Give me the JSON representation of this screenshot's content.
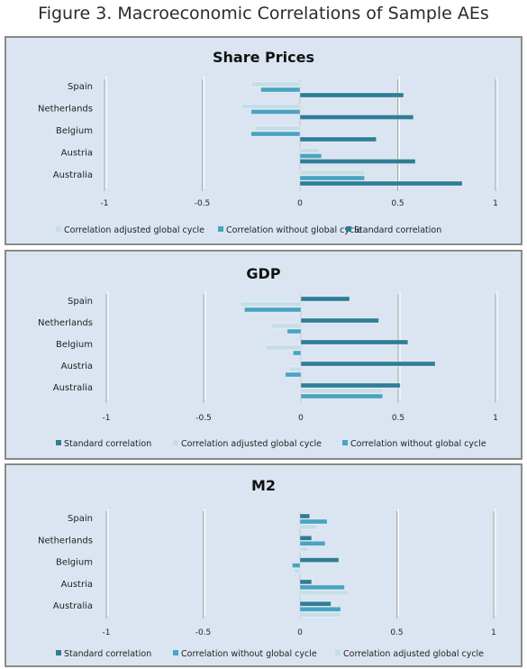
{
  "figure_title": "Figure 3. Macroeconomic Correlations of Sample AEs",
  "colors": {
    "standard": "#2f7d96",
    "without": "#4aa3c2",
    "adjusted": "#c5dde6",
    "panel_bg": "#dbe5f1"
  },
  "chart_data": [
    {
      "type": "bar",
      "orientation": "horizontal",
      "title": "Share Prices",
      "categories": [
        "Spain",
        "Netherlands",
        "Belgium",
        "Austria",
        "Australia"
      ],
      "xlim": [
        -1,
        1
      ],
      "xticks": [
        "-1",
        "-0.5",
        "0",
        "0.5",
        "1"
      ],
      "legend_position": "bottom",
      "series": [
        {
          "name": "Correlation adjusted global cycle",
          "key": "adjusted",
          "values": [
            -0.25,
            -0.3,
            -0.23,
            0.1,
            0.33
          ]
        },
        {
          "name": "Correlation without global cycle",
          "key": "without",
          "values": [
            -0.2,
            -0.25,
            -0.25,
            0.11,
            0.33
          ]
        },
        {
          "name": "Standard correlation",
          "key": "standard",
          "values": [
            0.53,
            0.58,
            0.39,
            0.59,
            0.83
          ]
        }
      ],
      "bar_order": [
        "adjusted",
        "without",
        "standard"
      ]
    },
    {
      "type": "bar",
      "orientation": "horizontal",
      "title": "GDP",
      "categories": [
        "Spain",
        "Netherlands",
        "Belgium",
        "Austria",
        "Australia"
      ],
      "xlim": [
        -1,
        1
      ],
      "xticks": [
        "-1",
        "-0.5",
        "0",
        "0.5",
        "1"
      ],
      "legend_position": "bottom",
      "series": [
        {
          "name": "Standard correlation",
          "key": "standard",
          "values": [
            0.25,
            0.4,
            0.55,
            0.69,
            0.51
          ]
        },
        {
          "name": "Correlation adjusted global cycle",
          "key": "adjusted",
          "values": [
            -0.31,
            -0.15,
            -0.18,
            -0.06,
            0.42
          ]
        },
        {
          "name": "Correlation without global cycle",
          "key": "without",
          "values": [
            -0.29,
            -0.07,
            -0.04,
            -0.08,
            0.42
          ]
        }
      ],
      "bar_order": [
        "standard",
        "adjusted",
        "without"
      ]
    },
    {
      "type": "bar",
      "orientation": "horizontal",
      "title": "M2",
      "categories": [
        "Spain",
        "Netherlands",
        "Belgium",
        "Austria",
        "Australia"
      ],
      "xlim": [
        -1,
        1
      ],
      "xticks": [
        "-1",
        "-0.5",
        "0",
        "0.5",
        "1"
      ],
      "legend_position": "bottom",
      "series": [
        {
          "name": "Standard correlation",
          "key": "standard",
          "values": [
            0.05,
            0.06,
            0.2,
            0.06,
            0.16
          ]
        },
        {
          "name": "Correlation without global cycle",
          "key": "without",
          "values": [
            0.14,
            0.13,
            -0.04,
            0.23,
            0.21
          ]
        },
        {
          "name": "Correlation adjusted global cycle",
          "key": "adjusted",
          "values": [
            0.09,
            0.04,
            -0.03,
            0.25,
            0.21
          ]
        }
      ],
      "bar_order": [
        "standard",
        "without",
        "adjusted"
      ]
    }
  ]
}
